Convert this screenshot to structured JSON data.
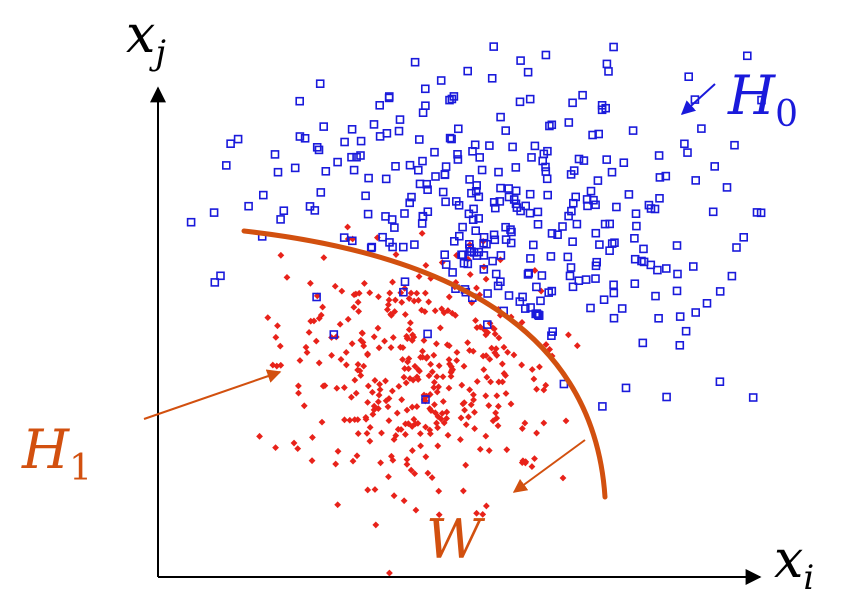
{
  "labels": {
    "x_axis": {
      "base": "x",
      "sub": "i"
    },
    "y_axis": {
      "base": "x",
      "sub": "j"
    },
    "h0": {
      "base": "H",
      "sub": "0"
    },
    "h1": {
      "base": "H",
      "sub": "1"
    },
    "region": "W"
  },
  "colors": {
    "h0_markers": "#1a1adb",
    "h1_markers": "#e8221a",
    "h0_text": "#1a1adb",
    "boundary": "#d2500f",
    "h1_text": "#d2500f",
    "axes": "#000000"
  },
  "markers": {
    "h0": {
      "shape": "open-square",
      "count": 330
    },
    "h1": {
      "shape": "filled-diamond",
      "count": 380
    }
  }
}
